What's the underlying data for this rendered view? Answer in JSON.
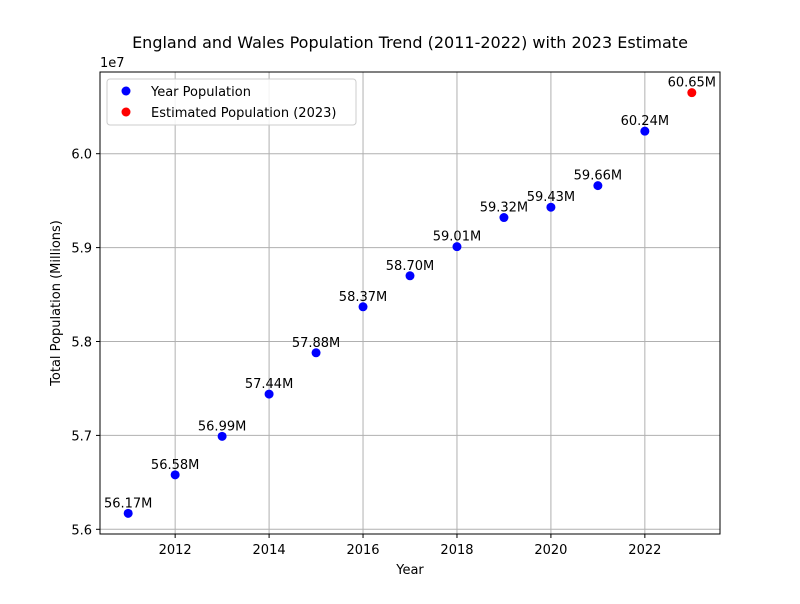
{
  "chart_data": {
    "type": "scatter",
    "title": "England and Wales Population Trend (2011-2022) with 2023 Estimate",
    "xlabel": "Year",
    "ylabel": "Total Population (Millions)",
    "offset_text": "1e7",
    "xlim": [
      2010.4,
      2023.6
    ],
    "ylim": [
      55950000,
      60870000
    ],
    "x_ticks": [
      2012,
      2014,
      2016,
      2018,
      2020,
      2022
    ],
    "y_ticks": [
      56000000,
      57000000,
      58000000,
      59000000,
      60000000
    ],
    "y_tick_labels": [
      "5.6",
      "5.7",
      "5.8",
      "5.9",
      "6.0"
    ],
    "grid": true,
    "legend_position": "top-left",
    "series": [
      {
        "name": "Year Population",
        "color": "#0000ff",
        "points": [
          {
            "x": 2011,
            "y": 56170000,
            "label": "56.17M"
          },
          {
            "x": 2012,
            "y": 56580000,
            "label": "56.58M"
          },
          {
            "x": 2013,
            "y": 56990000,
            "label": "56.99M"
          },
          {
            "x": 2014,
            "y": 57440000,
            "label": "57.44M"
          },
          {
            "x": 2015,
            "y": 57880000,
            "label": "57.88M"
          },
          {
            "x": 2016,
            "y": 58370000,
            "label": "58.37M"
          },
          {
            "x": 2017,
            "y": 58700000,
            "label": "58.70M"
          },
          {
            "x": 2018,
            "y": 59010000,
            "label": "59.01M"
          },
          {
            "x": 2019,
            "y": 59320000,
            "label": "59.32M"
          },
          {
            "x": 2020,
            "y": 59430000,
            "label": "59.43M"
          },
          {
            "x": 2021,
            "y": 59660000,
            "label": "59.66M"
          },
          {
            "x": 2022,
            "y": 60240000,
            "label": "60.24M"
          }
        ]
      },
      {
        "name": "Estimated Population (2023)",
        "color": "#ff0000",
        "points": [
          {
            "x": 2023,
            "y": 60650000,
            "label": "60.65M"
          }
        ]
      }
    ]
  }
}
